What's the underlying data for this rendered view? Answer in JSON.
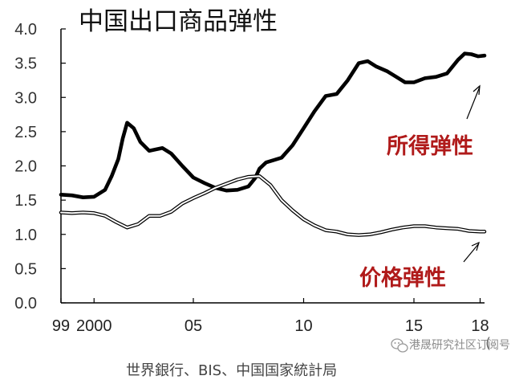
{
  "chart_data": {
    "type": "line",
    "title": "中国出口商品弹性",
    "ylim": [
      0.0,
      4.0
    ],
    "yticks": [
      "0.0",
      "0.5",
      "1.0",
      "1.5",
      "2.0",
      "2.5",
      "3.0",
      "3.5",
      "4.0"
    ],
    "xlim": [
      1999.0,
      2018.2
    ],
    "xticks": [
      {
        "x": 1999.0,
        "label": "99"
      },
      {
        "x": 2000.5,
        "label": "2000"
      },
      {
        "x": 2005.0,
        "label": "05"
      },
      {
        "x": 2010.0,
        "label": "10"
      },
      {
        "x": 2015.0,
        "label": "15"
      },
      {
        "x": 2018.0,
        "label": "18"
      }
    ],
    "unit_fragment": "(",
    "series": [
      {
        "name": "所得弹性",
        "style": "thick",
        "color": "#000000",
        "x": [
          1999.0,
          1999.5,
          2000.0,
          2000.5,
          2001.0,
          2001.3,
          2001.6,
          2001.8,
          2002.0,
          2002.3,
          2002.6,
          2003.0,
          2003.3,
          2003.6,
          2004.0,
          2004.5,
          2005.0,
          2005.5,
          2006.0,
          2006.5,
          2007.0,
          2007.5,
          2007.8,
          2008.0,
          2008.3,
          2008.6,
          2009.0,
          2009.5,
          2010.0,
          2010.5,
          2011.0,
          2011.5,
          2012.0,
          2012.5,
          2012.9,
          2013.3,
          2013.8,
          2014.2,
          2014.6,
          2015.0,
          2015.5,
          2016.0,
          2016.5,
          2017.0,
          2017.3,
          2017.6,
          2017.9,
          2018.2
        ],
        "y": [
          1.58,
          1.57,
          1.54,
          1.55,
          1.65,
          1.85,
          2.1,
          2.4,
          2.63,
          2.55,
          2.35,
          2.22,
          2.24,
          2.26,
          2.18,
          2.0,
          1.83,
          1.75,
          1.68,
          1.64,
          1.65,
          1.7,
          1.82,
          1.96,
          2.05,
          2.08,
          2.12,
          2.3,
          2.55,
          2.8,
          3.02,
          3.05,
          3.25,
          3.5,
          3.53,
          3.45,
          3.38,
          3.3,
          3.22,
          3.22,
          3.28,
          3.3,
          3.35,
          3.55,
          3.64,
          3.63,
          3.6,
          3.61
        ]
      },
      {
        "name": "价格弹性",
        "style": "double",
        "color": "#000000",
        "x": [
          1999.0,
          1999.5,
          2000.0,
          2000.5,
          2001.0,
          2001.5,
          2002.0,
          2002.5,
          2003.0,
          2003.5,
          2004.0,
          2004.5,
          2005.0,
          2005.5,
          2006.0,
          2006.5,
          2007.0,
          2007.5,
          2008.0,
          2008.5,
          2009.0,
          2009.5,
          2010.0,
          2010.5,
          2011.0,
          2011.5,
          2012.0,
          2012.5,
          2013.0,
          2013.5,
          2014.0,
          2014.5,
          2015.0,
          2015.5,
          2016.0,
          2016.5,
          2017.0,
          2017.5,
          2018.0,
          2018.2
        ],
        "y": [
          1.32,
          1.31,
          1.32,
          1.31,
          1.27,
          1.18,
          1.1,
          1.15,
          1.27,
          1.27,
          1.33,
          1.45,
          1.53,
          1.6,
          1.68,
          1.74,
          1.8,
          1.84,
          1.85,
          1.72,
          1.5,
          1.35,
          1.22,
          1.13,
          1.06,
          1.04,
          1.0,
          0.99,
          1.0,
          1.03,
          1.07,
          1.1,
          1.12,
          1.12,
          1.1,
          1.09,
          1.08,
          1.05,
          1.04,
          1.04
        ]
      }
    ],
    "annotations": [
      {
        "text": "所得弹性",
        "points_to": "所得弹性"
      },
      {
        "text": "价格弹性",
        "points_to": "价格弹性"
      }
    ],
    "source": "世界銀行、BIS、中国国家統計局",
    "watermark": "港晟研究社区订阅号",
    "grid": false,
    "legend": "none"
  }
}
